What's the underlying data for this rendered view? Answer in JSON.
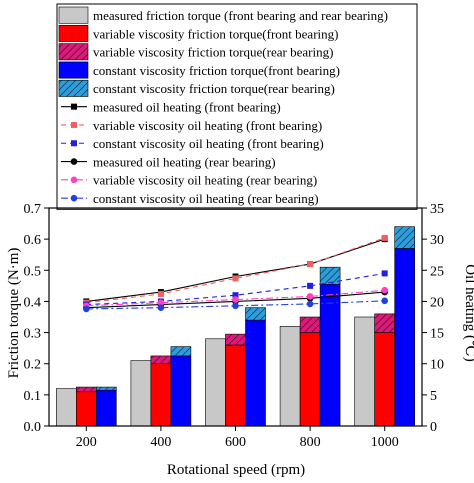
{
  "chart_data": {
    "type": "bar",
    "x_categories": [
      "200",
      "400",
      "600",
      "800",
      "1000"
    ],
    "xlabel": "Rotational speed (rpm)",
    "ylabel_left": "Friction torque (N·m)",
    "ylabel_right": "Oil heating (℃)",
    "ylim_left": [
      0,
      0.7
    ],
    "ylim_right": [
      0,
      35
    ],
    "yticks_left": [
      "0.0",
      "0.1",
      "0.2",
      "0.3",
      "0.4",
      "0.5",
      "0.6",
      "0.7"
    ],
    "yticks_right": [
      "0",
      "5",
      "10",
      "15",
      "20",
      "25",
      "30",
      "35"
    ],
    "grid": false,
    "legend_position": "top",
    "bar_series": [
      {
        "name": "measured friction torque (front bearing and rear bearing)",
        "color": "#c8c8c8",
        "values": [
          0.12,
          0.21,
          0.28,
          0.32,
          0.35
        ]
      },
      {
        "name": "variable viscosity friction torque(front bearing)",
        "color": "#ff0000",
        "values": [
          0.11,
          0.2,
          0.26,
          0.3,
          0.3
        ]
      },
      {
        "name": "variable viscosity friction torque(rear bearing)",
        "color": "#e0187a",
        "hatch": true,
        "values": [
          0.015,
          0.025,
          0.035,
          0.05,
          0.06
        ]
      },
      {
        "name": "constant viscosity friction torque(front bearing)",
        "color": "#0000ff",
        "values": [
          0.115,
          0.225,
          0.34,
          0.455,
          0.57
        ]
      },
      {
        "name": "constant viscosity friction torque(rear bearing)",
        "color": "#2a9fe0",
        "hatch": true,
        "values": [
          0.01,
          0.03,
          0.04,
          0.055,
          0.07
        ]
      }
    ],
    "line_series": [
      {
        "name": "measured oil heating (front bearing)",
        "color": "#000000",
        "dash": "solid",
        "marker": "square",
        "values": [
          20.0,
          21.5,
          24.0,
          26.0,
          30.0
        ]
      },
      {
        "name": "variable viscosity oil heating (front bearing)",
        "color": "#f06060",
        "dash": "dash",
        "marker": "square",
        "values": [
          19.8,
          21.2,
          23.7,
          26.0,
          30.2
        ]
      },
      {
        "name": "constant viscosity oil heating (front bearing)",
        "color": "#2020e0",
        "dash": "dash",
        "marker": "square",
        "values": [
          19.5,
          20.0,
          21.0,
          22.5,
          24.5
        ]
      },
      {
        "name": "measured oil heating (rear bearing)",
        "color": "#000000",
        "dash": "solid",
        "marker": "circle",
        "values": [
          19.0,
          19.5,
          20.0,
          20.5,
          21.5
        ]
      },
      {
        "name": "variable viscosity oil heating (rear bearing)",
        "color": "#ff40c0",
        "dash": "dashdot",
        "marker": "circle",
        "values": [
          19.3,
          19.8,
          20.3,
          20.8,
          21.8
        ]
      },
      {
        "name": "constant viscosity oil heating (rear bearing)",
        "color": "#2040e0",
        "dash": "dashdot",
        "marker": "circle",
        "values": [
          18.8,
          19.0,
          19.3,
          19.6,
          20.1
        ]
      }
    ]
  }
}
